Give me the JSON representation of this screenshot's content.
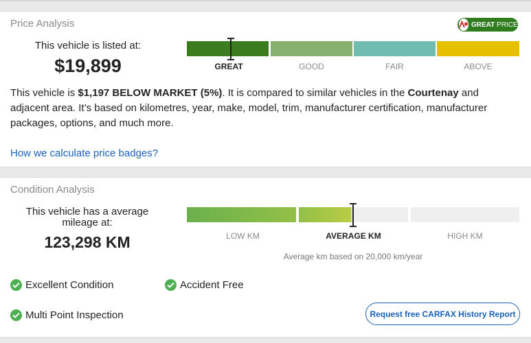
{
  "price": {
    "title": "Price Analysis",
    "badge": {
      "strong": "GREAT",
      "light": " PRICE"
    },
    "listed_label": "This vehicle is listed at:",
    "listed_value": "$19,899",
    "scale_labels": [
      "GREAT",
      "GOOD",
      "FAIR",
      "ABOVE"
    ],
    "active_label": "GREAT",
    "colors": [
      "#3b7d1e",
      "#86b06d",
      "#6fbcb0",
      "#e5c000"
    ],
    "desc": {
      "p1": "This vehicle is ",
      "amount": "$1,197 BELOW MARKET (5%)",
      "p2": ". It is compared to similar vehicles in the ",
      "city": "Courtenay",
      "p3": " and adjacent area. It’s based on kilometres, year, make, model, trim, manufacturer certification, manufacturer packages, options, and much more."
    },
    "link": "How we calculate price badges?"
  },
  "condition": {
    "title": "Condition Analysis",
    "label": "This vehicle has a average mileage at:",
    "value": "123,298 KM",
    "scale_labels": [
      "LOW KM",
      "AVERAGE KM",
      "HIGH KM"
    ],
    "active_label": "AVERAGE KM",
    "km_note": "Average km based on 20,000 km/year",
    "features": [
      "Excellent Condition",
      "Accident Free",
      "Multi Point Inspection"
    ],
    "cta": "Request free CARFAX History Report"
  },
  "colors": {
    "link": "#1a62b4",
    "check": "#4caf50"
  },
  "icons": [
    "carfax-logo-icon",
    "checkmark-icon"
  ]
}
